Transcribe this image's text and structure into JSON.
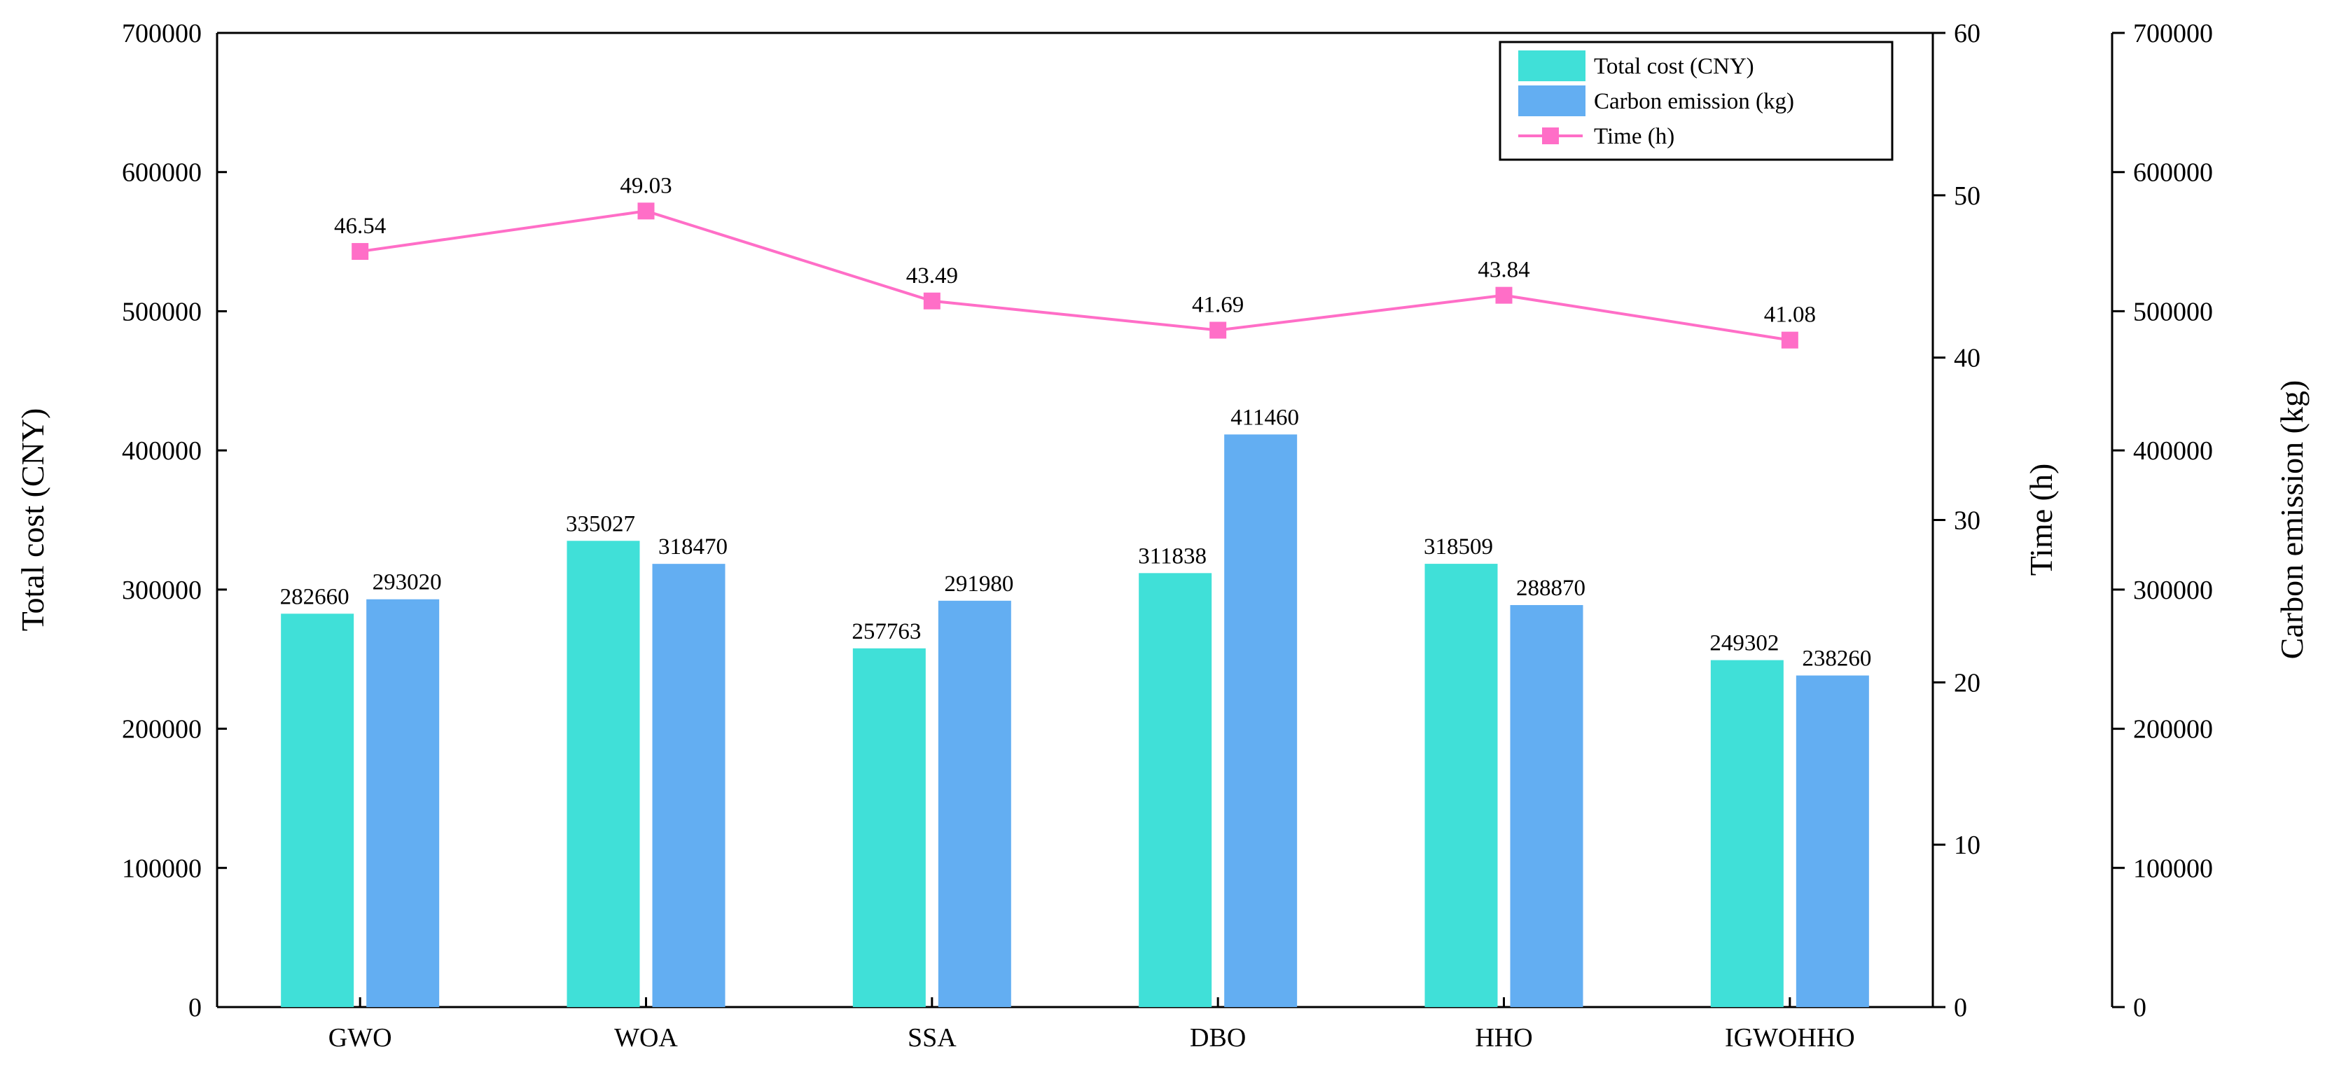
{
  "chart_data": {
    "type": "bar",
    "categories": [
      "GWO",
      "WOA",
      "SSA",
      "DBO",
      "HHO",
      "IGWOHHO"
    ],
    "series": [
      {
        "name": "Total cost (CNY)",
        "axis": "left",
        "color": "#40E0D8",
        "values": [
          282660,
          335027,
          257763,
          311838,
          318509,
          249302
        ],
        "labels": [
          "282660",
          "335027",
          "257763",
          "311838",
          "318509",
          "249302"
        ]
      },
      {
        "name": "Carbon emission (kg)",
        "axis": "right-outer",
        "color": "#63AEF2",
        "values": [
          293020,
          318470,
          291980,
          411460,
          288870,
          238260
        ],
        "labels": [
          "293020",
          "318470",
          "291980",
          "411460",
          "288870",
          "238260"
        ]
      },
      {
        "name": "Time (h)",
        "type": "line",
        "axis": "right-inner",
        "color": "#FF6EC7",
        "values": [
          46.54,
          49.03,
          43.49,
          41.69,
          43.84,
          41.08
        ],
        "labels": [
          "46.54",
          "49.03",
          "43.49",
          "41.69",
          "43.84",
          "41.08"
        ]
      }
    ],
    "axes": {
      "left": {
        "title": "Total cost (CNY)",
        "range": [
          0,
          700000
        ],
        "ticks": [
          "0",
          "100000",
          "200000",
          "300000",
          "400000",
          "500000",
          "600000",
          "700000"
        ]
      },
      "right_inner": {
        "title": "Time (h)",
        "range": [
          0,
          60
        ],
        "ticks": [
          "0",
          "10",
          "20",
          "30",
          "40",
          "50",
          "60"
        ]
      },
      "right_outer": {
        "title": "Carbon emission (kg)",
        "range": [
          0,
          700000
        ],
        "ticks": [
          "0",
          "100000",
          "200000",
          "300000",
          "400000",
          "500000",
          "600000",
          "700000"
        ]
      }
    },
    "legend": {
      "position": "top-right",
      "items": [
        "Total cost (CNY)",
        "Carbon emission (kg)",
        "Time (h)"
      ]
    },
    "grid": false
  }
}
